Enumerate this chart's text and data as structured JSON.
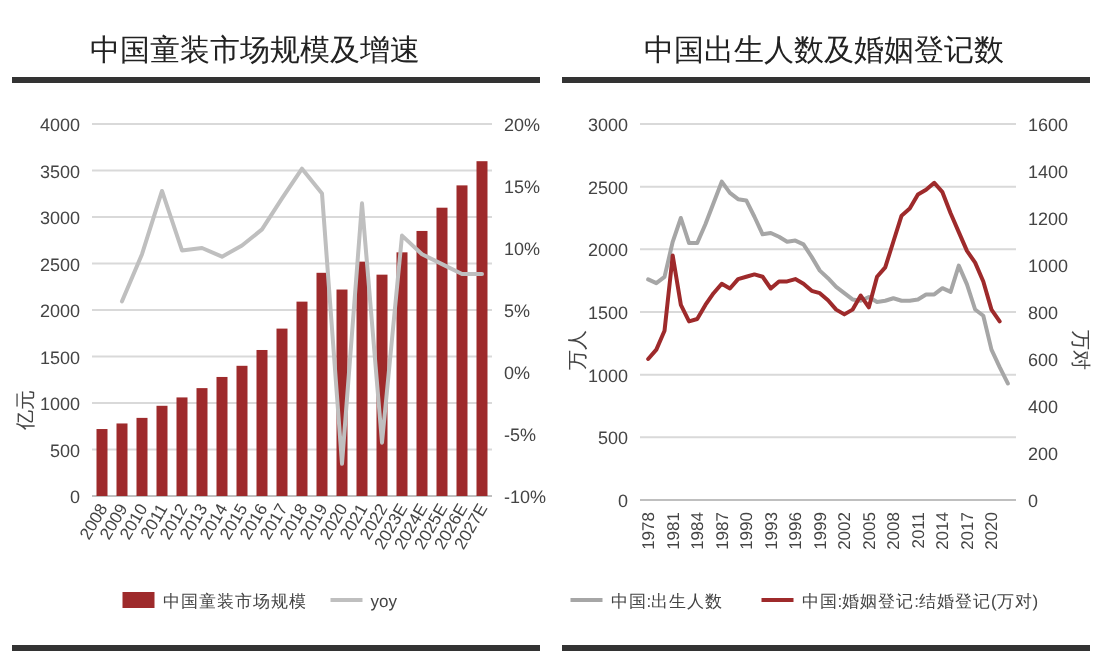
{
  "chart_data": [
    {
      "type": "bar",
      "title": "中国童装市场规模及增速",
      "ylabel": "亿元",
      "categories": [
        "2008",
        "2009",
        "2010",
        "2011",
        "2012",
        "2013",
        "2014",
        "2015",
        "2016",
        "2017",
        "2018",
        "2019",
        "2020",
        "2021",
        "2022",
        "2023E",
        "2024E",
        "2025E",
        "2026E",
        "2027E"
      ],
      "series": [
        {
          "name": "中国童装市场规模",
          "color": "#9e2a2b",
          "values": [
            720,
            780,
            840,
            970,
            1060,
            1160,
            1280,
            1400,
            1570,
            1800,
            2090,
            2400,
            2220,
            2520,
            2380,
            2620,
            2850,
            3100,
            3340,
            3600
          ]
        },
        {
          "name": "yoy",
          "type": "line",
          "axis": "y2",
          "color": "#bfbfbf",
          "values": [
            null,
            5.7,
            9.5,
            14.6,
            9.8,
            10,
            9.3,
            10.2,
            11.5,
            14,
            16.4,
            14.4,
            -7.4,
            13.6,
            -5.7,
            11,
            9.5,
            8.7,
            7.9,
            7.9
          ]
        }
      ],
      "ylim": [
        0,
        4000
      ],
      "yticks": [
        0,
        500,
        1000,
        1500,
        2000,
        2500,
        3000,
        3500,
        4000
      ],
      "y2lim": [
        -10,
        20
      ],
      "y2ticks": [
        {
          "value": -10,
          "label": "-10%"
        },
        {
          "value": -5,
          "label": "-5%"
        },
        {
          "value": 0,
          "label": "0%"
        },
        {
          "value": 5,
          "label": "5%"
        },
        {
          "value": 10,
          "label": "10%"
        },
        {
          "value": 15,
          "label": "15%"
        },
        {
          "value": 20,
          "label": "20%"
        }
      ],
      "grid": "y",
      "legend": "bottom"
    },
    {
      "type": "line",
      "title": "中国出生人数及婚姻登记数",
      "ylabel": "万人",
      "y2label": "万对",
      "x": [
        1978,
        1979,
        1980,
        1981,
        1982,
        1983,
        1984,
        1985,
        1986,
        1987,
        1988,
        1989,
        1990,
        1991,
        1992,
        1993,
        1994,
        1995,
        1996,
        1997,
        1998,
        1999,
        2000,
        2001,
        2002,
        2003,
        2004,
        2005,
        2006,
        2007,
        2008,
        2009,
        2010,
        2011,
        2012,
        2013,
        2014,
        2015,
        2016,
        2017,
        2018,
        2019,
        2020,
        2021,
        2022
      ],
      "series": [
        {
          "name": "中国:出生人数",
          "color": "#a6a6a6",
          "values": [
            1760,
            1730,
            1780,
            2060,
            2250,
            2050,
            2050,
            2200,
            2370,
            2540,
            2450,
            2400,
            2390,
            2260,
            2120,
            2130,
            2100,
            2060,
            2070,
            2040,
            1940,
            1830,
            1770,
            1700,
            1650,
            1600,
            1590,
            1620,
            1580,
            1590,
            1610,
            1590,
            1590,
            1600,
            1640,
            1640,
            1690,
            1660,
            1870,
            1720,
            1520,
            1470,
            1200,
            1060,
            930
          ]
        },
        {
          "name": "中国:婚姻登记:结婚登记(万对)",
          "axis": "y2",
          "color": "#9e2a2b",
          "x": [
            1978,
            1979,
            1980,
            1981,
            1982,
            1983,
            1984,
            1985,
            1986,
            1987,
            1988,
            1989,
            1990,
            1991,
            1992,
            1993,
            1994,
            1995,
            1996,
            1997,
            1998,
            1999,
            2000,
            2001,
            2002,
            2003,
            2004,
            2005,
            2006,
            2007,
            2008,
            2009,
            2010,
            2011,
            2012,
            2013,
            2014,
            2015,
            2016,
            2017,
            2018,
            2019,
            2020,
            2021
          ],
          "values": [
            600,
            640,
            720,
            1040,
            830,
            760,
            770,
            830,
            880,
            920,
            900,
            940,
            950,
            960,
            950,
            900,
            930,
            930,
            940,
            920,
            890,
            880,
            850,
            810,
            790,
            810,
            870,
            820,
            950,
            990,
            1100,
            1210,
            1240,
            1300,
            1320,
            1350,
            1310,
            1220,
            1140,
            1060,
            1010,
            930,
            810,
            760
          ]
        }
      ],
      "xlim": [
        1977,
        2023
      ],
      "xticks": [
        1978,
        1981,
        1984,
        1987,
        1990,
        1993,
        1996,
        1999,
        2002,
        2005,
        2008,
        2011,
        2014,
        2017,
        2020
      ],
      "ylim": [
        0,
        3000
      ],
      "yticks": [
        0,
        500,
        1000,
        1500,
        2000,
        2500,
        3000
      ],
      "y2lim": [
        0,
        1600
      ],
      "y2ticks": [
        0,
        200,
        400,
        600,
        800,
        1000,
        1200,
        1400,
        1600
      ],
      "grid": "y",
      "legend": "bottom"
    }
  ]
}
